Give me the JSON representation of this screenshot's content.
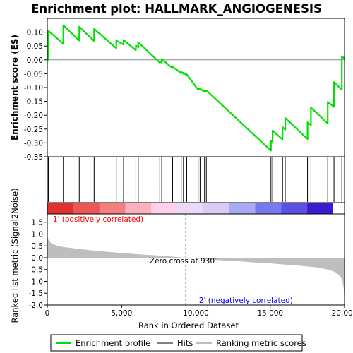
{
  "chart_data": {
    "type": "line",
    "title": "Enrichment plot: HALLMARK_ANGIOGENESIS",
    "n_genes": 20000,
    "panels": {
      "es": {
        "ylabel": "Enrichment score (ES)",
        "ylim": [
          -0.35,
          0.15
        ],
        "yticks": [
          -0.35,
          -0.3,
          -0.25,
          -0.2,
          -0.15,
          -0.1,
          -0.05,
          0.0,
          0.05,
          0.1
        ],
        "ytick_labels": [
          "-0.35",
          "-0.30",
          "-0.25",
          "-0.20",
          "-0.15",
          "-0.10",
          "-0.05",
          "0.00",
          "0.05",
          "0.10"
        ],
        "series_name": "Enrichment profile",
        "color": "#00e000",
        "hit_ranks": [
          70,
          1080,
          2150,
          3150,
          4640,
          5130,
          5960,
          6120,
          7570,
          7700,
          8430,
          9010,
          9160,
          9380,
          10150,
          10280,
          10580,
          10700,
          15050,
          15160,
          15830,
          16010,
          17510,
          17740,
          18870,
          19290,
          19820
        ],
        "es_points": [
          [
            0,
            0.0
          ],
          [
            69,
            0.0
          ],
          [
            70,
            0.105
          ],
          [
            1079,
            0.058
          ],
          [
            1080,
            0.125
          ],
          [
            2149,
            0.07
          ],
          [
            2150,
            0.12
          ],
          [
            3149,
            0.068
          ],
          [
            3150,
            0.112
          ],
          [
            4639,
            0.042
          ],
          [
            4640,
            0.07
          ],
          [
            5129,
            0.055
          ],
          [
            5130,
            0.072
          ],
          [
            5959,
            0.035
          ],
          [
            5960,
            0.052
          ],
          [
            6119,
            0.045
          ],
          [
            6120,
            0.064
          ],
          [
            7569,
            -0.01
          ],
          [
            7570,
            -0.005
          ],
          [
            7699,
            -0.01
          ],
          [
            7700,
            0.003
          ],
          [
            8429,
            -0.03
          ],
          [
            8430,
            -0.025
          ],
          [
            9009,
            -0.048
          ],
          [
            9010,
            -0.043
          ],
          [
            9159,
            -0.05
          ],
          [
            9160,
            -0.046
          ],
          [
            9379,
            -0.056
          ],
          [
            9380,
            -0.052
          ],
          [
            10149,
            -0.108
          ],
          [
            10150,
            -0.103
          ],
          [
            10279,
            -0.108
          ],
          [
            10280,
            -0.104
          ],
          [
            10579,
            -0.116
          ],
          [
            10580,
            -0.11
          ],
          [
            10699,
            -0.115
          ],
          [
            10700,
            -0.11
          ],
          [
            15049,
            -0.328
          ],
          [
            15050,
            -0.292
          ],
          [
            15159,
            -0.296
          ],
          [
            15160,
            -0.255
          ],
          [
            15829,
            -0.288
          ],
          [
            15830,
            -0.243
          ],
          [
            16009,
            -0.252
          ],
          [
            16010,
            -0.21
          ],
          [
            17509,
            -0.286
          ],
          [
            17510,
            -0.226
          ],
          [
            17739,
            -0.236
          ],
          [
            17740,
            -0.172
          ],
          [
            18869,
            -0.23
          ],
          [
            18870,
            -0.152
          ],
          [
            19289,
            -0.17
          ],
          [
            19290,
            -0.08
          ],
          [
            19819,
            -0.108
          ],
          [
            19820,
            0.013
          ],
          [
            20000,
            0.004
          ]
        ]
      },
      "rank_metric": {
        "ylabel": "Ranked list metric (Signal2Noise)",
        "ylim": [
          -2.0,
          1.85
        ],
        "yticks": [
          -2.0,
          -1.5,
          -1.0,
          -0.5,
          0.0,
          0.5,
          1.0,
          1.5
        ],
        "ytick_labels": [
          "-2.0",
          "-1.5",
          "-1.0",
          "-0.5",
          "0.0",
          "0.5",
          "1.0",
          "1.5"
        ],
        "metric_profile": [
          [
            0,
            1.0
          ],
          [
            50,
            0.78
          ],
          [
            250,
            0.62
          ],
          [
            600,
            0.52
          ],
          [
            1000,
            0.46
          ],
          [
            2000,
            0.38
          ],
          [
            3000,
            0.31
          ],
          [
            4000,
            0.25
          ],
          [
            5000,
            0.2
          ],
          [
            6000,
            0.15
          ],
          [
            7000,
            0.11
          ],
          [
            8000,
            0.07
          ],
          [
            9301,
            0.0
          ],
          [
            10000,
            -0.04
          ],
          [
            11000,
            -0.08
          ],
          [
            12000,
            -0.12
          ],
          [
            13000,
            -0.16
          ],
          [
            14000,
            -0.2
          ],
          [
            15000,
            -0.24
          ],
          [
            16000,
            -0.29
          ],
          [
            17000,
            -0.34
          ],
          [
            18000,
            -0.4
          ],
          [
            18500,
            -0.45
          ],
          [
            19000,
            -0.52
          ],
          [
            19400,
            -0.62
          ],
          [
            19700,
            -0.78
          ],
          [
            19850,
            -0.95
          ],
          [
            19950,
            -1.3
          ],
          [
            20000,
            -1.95
          ]
        ]
      }
    },
    "xlabel": "Rank in Ordered Dataset",
    "xlim": [
      0,
      20000
    ],
    "xticks": [
      0,
      5000,
      10000,
      15000,
      20000
    ],
    "xtick_labels": [
      "0",
      "5,000",
      "10,000",
      "15,000",
      "20,000"
    ],
    "zero_cross_rank": 9301,
    "annotations": {
      "positive": "'1' (positively correlated)",
      "negative": "'2' (negatively correlated)",
      "zero_cross": "Zero cross at 9301"
    },
    "colors": {
      "es_line": "#00e000",
      "positive_label": "#ff0000",
      "negative_label": "#0000ff",
      "metric_fill": "#bebebe",
      "hit_line": "#000000"
    },
    "color_bar": [
      "#e03030",
      "#ee5555",
      "#f57f7f",
      "#fbb0c0",
      "#ffd0ee",
      "#ecd8f8",
      "#d8ccf6",
      "#a8a8f4",
      "#7a78ee",
      "#5a50e6",
      "#3a1cd0"
    ],
    "legend": {
      "items": [
        "Enrichment profile",
        "Hits",
        "Ranking metric scores"
      ],
      "colors": [
        "#00e000",
        "#000000",
        "#bebebe"
      ]
    }
  }
}
